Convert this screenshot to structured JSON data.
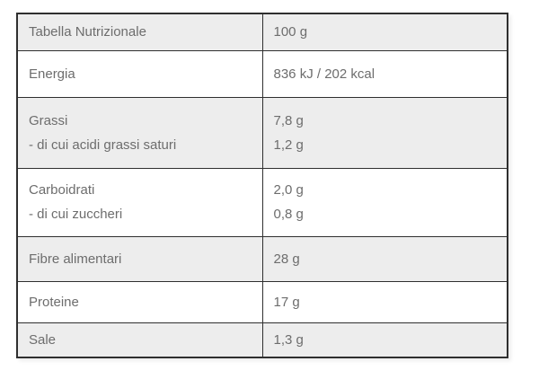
{
  "chart_data": {
    "type": "table",
    "title": "Tabella Nutrizionale",
    "columns": [
      "Tabella Nutrizionale",
      "100 g"
    ],
    "rows": [
      {
        "label": "Energia",
        "value": "836 kJ / 202 kcal"
      },
      {
        "label": "Grassi",
        "sub_label": "- di cui acidi grassi saturi",
        "value": "7,8 g",
        "sub_value": "1,2 g"
      },
      {
        "label": "Carboidrati",
        "sub_label": "- di cui zuccheri",
        "value": "2,0 g",
        "sub_value": "0,8 g"
      },
      {
        "label": "Fibre alimentari",
        "value": "28 g"
      },
      {
        "label": "Proteine",
        "value": "17 g"
      },
      {
        "label": "Sale",
        "value": "1,3 g"
      }
    ],
    "layout": {
      "shaded_rows": [
        "header",
        "Grassi",
        "Fibre alimentari",
        "Sale"
      ],
      "columns_width": "50/50"
    },
    "colors": {
      "shaded_row_bg": "#ededed",
      "border": "#2f2f2f",
      "header_text": "#3d3d3d",
      "body_text": "#6d6d6d",
      "background": "#ffffff"
    }
  }
}
